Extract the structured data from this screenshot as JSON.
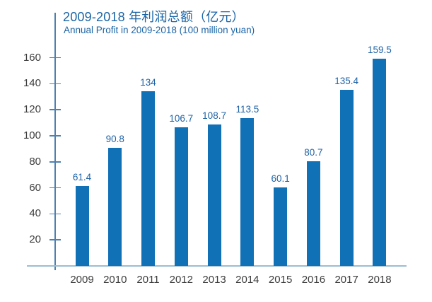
{
  "title": "2009-2018 年利润总额（亿元）",
  "subtitle": "Annual Profit in 2009-2018 (100 million yuan)",
  "colors": {
    "bar": "#1171b6",
    "axis_line": "#4e81b0",
    "baseline": "#9cbcd3",
    "title_text": "#1a64a6",
    "subtitle_text": "#1a64a6",
    "value_label": "#1e62a5",
    "axis_tick_label": "#3c3c3c"
  },
  "chart_data": {
    "type": "bar",
    "title": "2009-2018 年利润总额（亿元）",
    "subtitle": "Annual Profit in 2009-2018 (100 million yuan)",
    "categories": [
      "2009",
      "2010",
      "2011",
      "2012",
      "2013",
      "2014",
      "2015",
      "2016",
      "2017",
      "2018"
    ],
    "values": [
      61.4,
      90.8,
      134,
      106.7,
      108.7,
      113.5,
      60.1,
      80.7,
      135.4,
      159.5
    ],
    "value_labels": [
      "61.4",
      "90.8",
      "134",
      "106.7",
      "108.7",
      "113.5",
      "60.1",
      "80.7",
      "135.4",
      "159.5"
    ],
    "xlabel": "",
    "ylabel": "",
    "yticks": [
      20,
      40,
      60,
      80,
      100,
      120,
      140,
      160
    ],
    "ylim": [
      0,
      195
    ],
    "grid": false,
    "legend": "none",
    "bar_color": "#1171b6"
  }
}
